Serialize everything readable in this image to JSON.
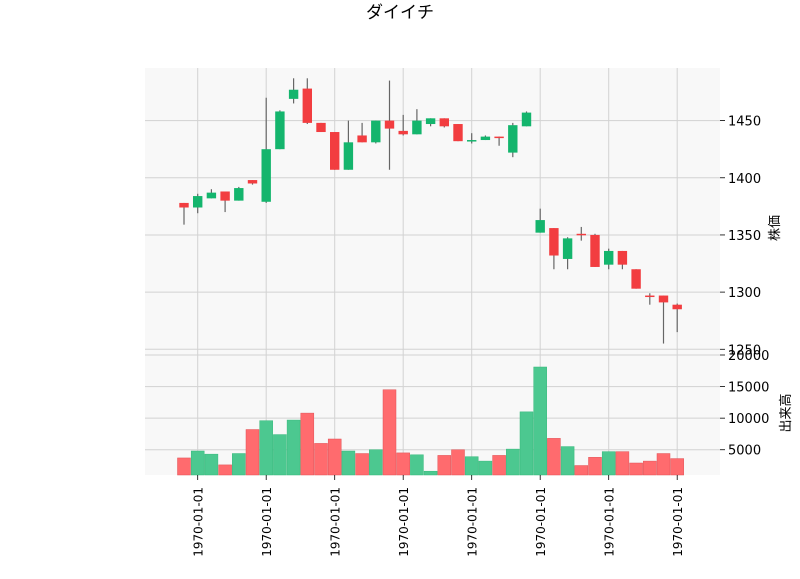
{
  "chart_data": {
    "type": "candlestick",
    "title": "ダイイチ",
    "price_ylabel": "株価",
    "volume_ylabel": "出来高",
    "price_ylim": [
      1245,
      1496
    ],
    "price_yticks": [
      1250,
      1300,
      1350,
      1400,
      1450
    ],
    "volume_ylim": [
      1000,
      20000
    ],
    "volume_yticks": [
      5000,
      10000,
      15000,
      20000
    ],
    "xtick_labels": [
      "1970-01-01",
      "1970-01-01",
      "1970-01-01",
      "1970-01-01",
      "1970-01-01",
      "1970-01-01",
      "1970-01-01",
      "1970-01-01"
    ],
    "xtick_positions": [
      1,
      6,
      11,
      16,
      21,
      26,
      31,
      36
    ],
    "colors": {
      "up": "#14b56d",
      "down": "#f23d40",
      "up_volume": "#4cc890",
      "down_volume": "#ff6b6e",
      "wick": "#666666"
    },
    "grid": true,
    "candles": [
      {
        "open": 1378,
        "high": 1378,
        "low": 1359,
        "close": 1374
      },
      {
        "open": 1374,
        "high": 1386,
        "low": 1369,
        "close": 1384
      },
      {
        "open": 1382,
        "high": 1390,
        "low": 1382,
        "close": 1387
      },
      {
        "open": 1388,
        "high": 1388,
        "low": 1370,
        "close": 1380
      },
      {
        "open": 1380,
        "high": 1392,
        "low": 1380,
        "close": 1391
      },
      {
        "open": 1398,
        "high": 1398,
        "low": 1394,
        "close": 1395
      },
      {
        "open": 1379,
        "high": 1470,
        "low": 1378,
        "close": 1425
      },
      {
        "open": 1425,
        "high": 1459,
        "low": 1425,
        "close": 1458
      },
      {
        "open": 1469,
        "high": 1487,
        "low": 1465,
        "close": 1477
      },
      {
        "open": 1478,
        "high": 1487,
        "low": 1447,
        "close": 1448
      },
      {
        "open": 1448,
        "high": 1448,
        "low": 1440,
        "close": 1440
      },
      {
        "open": 1440,
        "high": 1440,
        "low": 1407,
        "close": 1407
      },
      {
        "open": 1407,
        "high": 1450,
        "low": 1407,
        "close": 1431
      },
      {
        "open": 1437,
        "high": 1448,
        "low": 1431,
        "close": 1431
      },
      {
        "open": 1431,
        "high": 1450,
        "low": 1430,
        "close": 1450
      },
      {
        "open": 1450,
        "high": 1485,
        "low": 1407,
        "close": 1443
      },
      {
        "open": 1441,
        "high": 1455,
        "low": 1437,
        "close": 1438
      },
      {
        "open": 1438,
        "high": 1460,
        "low": 1438,
        "close": 1450
      },
      {
        "open": 1447,
        "high": 1452,
        "low": 1445,
        "close": 1452
      },
      {
        "open": 1452,
        "high": 1452,
        "low": 1444,
        "close": 1445
      },
      {
        "open": 1447,
        "high": 1447,
        "low": 1432,
        "close": 1432
      },
      {
        "open": 1432,
        "high": 1439,
        "low": 1430,
        "close": 1433
      },
      {
        "open": 1433,
        "high": 1437,
        "low": 1433,
        "close": 1436
      },
      {
        "open": 1436,
        "high": 1436,
        "low": 1428,
        "close": 1435
      },
      {
        "open": 1422,
        "high": 1448,
        "low": 1418,
        "close": 1446
      },
      {
        "open": 1445,
        "high": 1458,
        "low": 1445,
        "close": 1457
      },
      {
        "open": 1352,
        "high": 1373,
        "low": 1352,
        "close": 1363
      },
      {
        "open": 1356,
        "high": 1356,
        "low": 1320,
        "close": 1332
      },
      {
        "open": 1329,
        "high": 1348,
        "low": 1320,
        "close": 1347
      },
      {
        "open": 1351,
        "high": 1357,
        "low": 1345,
        "close": 1350
      },
      {
        "open": 1350,
        "high": 1351,
        "low": 1322,
        "close": 1322
      },
      {
        "open": 1324,
        "high": 1338,
        "low": 1320,
        "close": 1336
      },
      {
        "open": 1336,
        "high": 1336,
        "low": 1320,
        "close": 1324
      },
      {
        "open": 1320,
        "high": 1320,
        "low": 1303,
        "close": 1303
      },
      {
        "open": 1297,
        "high": 1299,
        "low": 1289,
        "close": 1296
      },
      {
        "open": 1297,
        "high": 1297,
        "low": 1255,
        "close": 1291
      },
      {
        "open": 1289,
        "high": 1290,
        "low": 1265,
        "close": 1285
      }
    ],
    "volume": [
      3700,
      4800,
      4300,
      2600,
      4400,
      8200,
      9600,
      7400,
      9700,
      10800,
      6000,
      6700,
      4800,
      4400,
      5000,
      14500,
      4500,
      4200,
      1600,
      4100,
      5000,
      3900,
      3200,
      4100,
      5100,
      11000,
      18100,
      6800,
      5500,
      2500,
      3800,
      4700,
      4700,
      2900,
      3200,
      4400,
      3600
    ]
  }
}
